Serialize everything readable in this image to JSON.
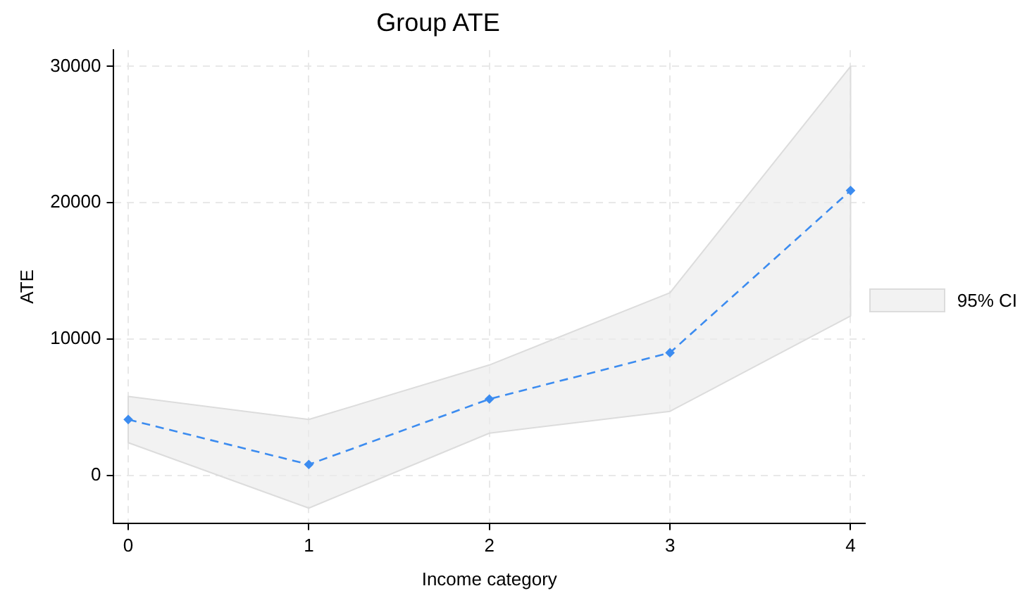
{
  "chart_data": {
    "type": "line",
    "title": "Group ATE",
    "xlabel": "Income category",
    "ylabel": "ATE",
    "x": [
      0,
      1,
      2,
      3,
      4
    ],
    "series": [
      {
        "name": "95% CI",
        "color": "#3c8cf0",
        "values": [
          4100,
          800,
          5600,
          9000,
          20900
        ],
        "lower": [
          2400,
          -2400,
          3100,
          4700,
          11700
        ],
        "upper": [
          5800,
          4100,
          8100,
          13400,
          30000
        ]
      }
    ],
    "xlim": [
      -0.08,
      4.08
    ],
    "xticks": [
      0,
      1,
      2,
      3,
      4
    ],
    "ylim": [
      -3500,
      31200
    ],
    "yticks": [
      0,
      10000,
      20000,
      30000
    ],
    "grid": true,
    "legend": "right",
    "marker": "diamond",
    "line_style": "dashed"
  }
}
